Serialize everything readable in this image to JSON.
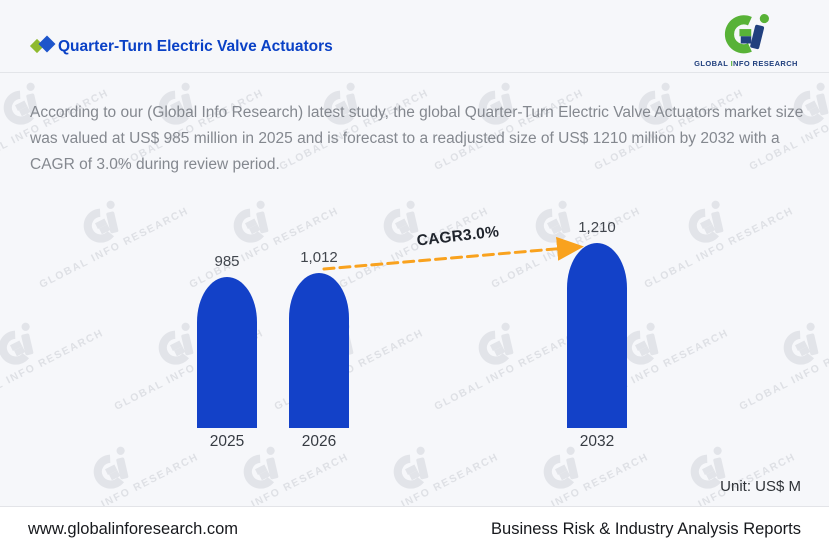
{
  "header": {
    "title": "Quarter-Turn Electric Valve Actuators",
    "logo": {
      "text_parts": [
        "GLOBAL ",
        "I",
        "NFO RESEARCH"
      ],
      "green": "#58b237",
      "navy": "#21407e"
    }
  },
  "description": {
    "text": "According to our (Global Info Research) latest study, the global Quarter-Turn Electric Valve Actuators market size was valued at US$ 985 million in 2025 and is forecast to a readjusted size of US$ 1210 million by 2032 with a CAGR of 3.0% during review period."
  },
  "chart_data": {
    "type": "bar",
    "categories": [
      "2025",
      "2026",
      "2032"
    ],
    "values": [
      985,
      1012,
      1210
    ],
    "value_labels": [
      "985",
      "1,012",
      "1,210"
    ],
    "annotation": "CAGR3.0%",
    "unit_label": "Unit: US$ M",
    "bar_color": "#1341c8",
    "arrow_color": "#f9a21e",
    "ylim": [
      0,
      1300
    ],
    "grid": false,
    "legend": false
  },
  "watermark": {
    "text": "GLOBAL INFO RESEARCH"
  },
  "footer": {
    "website": "www.globalinforesearch.com",
    "tagline": "Business Risk & Industry Analysis Reports"
  }
}
